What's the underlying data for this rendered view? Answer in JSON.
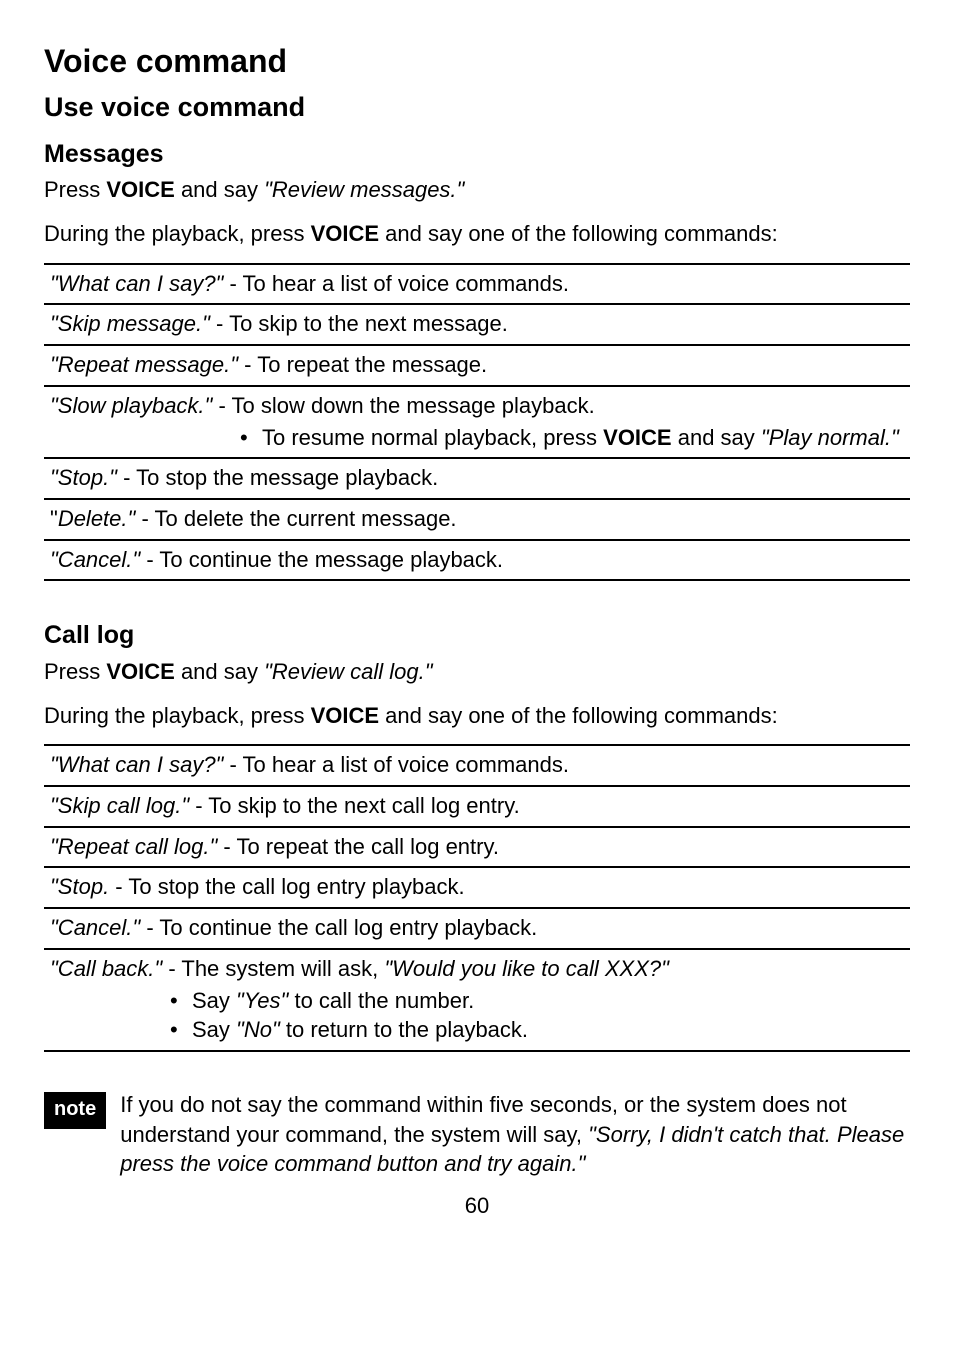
{
  "page_title": "Voice command",
  "subtitle": "Use voice command",
  "page_number": "60",
  "messages_section": {
    "heading": "Messages",
    "intro_prefix": "Press ",
    "intro_bold": "VOICE",
    "intro_mid": " and say ",
    "intro_cmd": "\"Review messages.\"",
    "playback_prefix": "During the playback, press ",
    "playback_bold": "VOICE",
    "playback_suffix": " and say one of the following commands:",
    "rows": [
      {
        "cmd": "\"What can I say?\"",
        "sep": "  -  ",
        "desc": "To hear a list of voice commands."
      },
      {
        "cmd": "\"Skip message.\"",
        "sep": "  -  ",
        "desc": "To skip to the next message."
      },
      {
        "cmd": "\"Repeat message.\"",
        "sep": "  -  ",
        "desc": "To repeat the message."
      },
      {
        "cmd": "\"Slow playback.\"",
        "sep": "  -  ",
        "desc": "To slow down the message playback.",
        "sub_prefix": "To resume normal playback, press ",
        "sub_bold": "VOICE",
        "sub_mid": " and say ",
        "sub_cmd": "\"Play normal.\""
      },
      {
        "cmd": "\"Stop.\"",
        "sep": "  -  ",
        "desc": "To stop the message playback."
      },
      {
        "cmd": "\"Delete.\"",
        "sep": "  -  ",
        "desc": "To delete the current message.",
        "quote_style": "outer"
      },
      {
        "cmd": "\"Cancel.\"",
        "sep": "  -  ",
        "desc": "To continue the message playback."
      }
    ]
  },
  "call_log_section": {
    "heading": "Call log",
    "intro_prefix": "Press ",
    "intro_bold": "VOICE",
    "intro_mid": " and say ",
    "intro_cmd": "\"Review call log.\"",
    "playback_prefix": "During the playback, press ",
    "playback_bold": "VOICE",
    "playback_suffix": " and say one of the following commands:",
    "rows": [
      {
        "cmd": "\"What can I say?\"",
        "sep": "  -  ",
        "desc": "To hear a list of voice commands."
      },
      {
        "cmd": "\"Skip call log.\"",
        "sep": "  -  ",
        "desc": "To skip to the next call log entry."
      },
      {
        "cmd": "\"Repeat call log.\"",
        "sep": "  -  ",
        "desc": "To repeat the call log entry."
      },
      {
        "cmd": "\"Stop.",
        "sep": "  -  ",
        "desc": "To stop the call log entry playback."
      },
      {
        "cmd": "\"Cancel.\"",
        "sep": "  -  ",
        "desc": "To continue the call log entry playback."
      },
      {
        "cmd": "\"Call back.\"",
        "sep": "  -  ",
        "desc_prefix": "The system will ask, ",
        "desc_cmd": "\"Would you like to call XXX?\"",
        "subs": [
          {
            "prefix": "Say ",
            "cmd": "\"Yes\"",
            "suffix": " to call the number."
          },
          {
            "prefix": "Say ",
            "cmd": "\"No\"",
            "suffix": " to return to the playback."
          }
        ]
      }
    ]
  },
  "note": {
    "label": "note",
    "text_prefix": "If you do not say the command within five seconds, or the system does not understand your command, the system will say, ",
    "text_cmd": "\"Sorry, I didn't catch that. Please press the voice command button and try again.\""
  }
}
